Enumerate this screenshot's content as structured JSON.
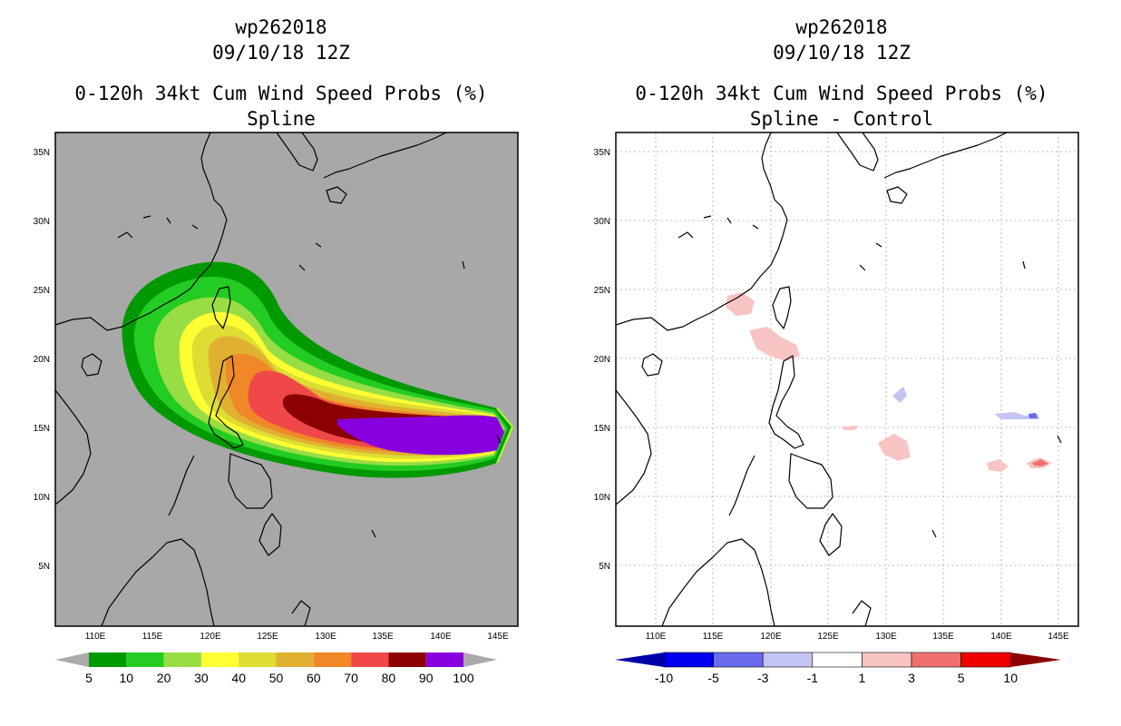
{
  "left_panel": {
    "title_line1": "wp262018",
    "title_line2": "09/10/18 12Z",
    "title_line3": "0-120h 34kt Cum Wind Speed Probs (%)",
    "title_line4": "Spline",
    "background_color": "#a8a8a8",
    "colorbar": {
      "colors": [
        "#009900",
        "#22cc22",
        "#99dd44",
        "#ffff33",
        "#dddd33",
        "#e0b030",
        "#f08828",
        "#f04848",
        "#8b0000",
        "#8800dd"
      ],
      "labels": [
        "5",
        "10",
        "20",
        "30",
        "40",
        "50",
        "60",
        "70",
        "80",
        "90",
        "100"
      ]
    }
  },
  "right_panel": {
    "title_line1": "wp262018",
    "title_line2": "09/10/18 12Z",
    "title_line3": "0-120h 34kt Cum Wind Speed Probs (%)",
    "title_line4": "Spline - Control",
    "background_color": "#ffffff",
    "colorbar": {
      "colors": [
        "#0000aa",
        "#0000ee",
        "#6a6aee",
        "#c4c4f4",
        "#ffffff",
        "#f8c4c4",
        "#f07070",
        "#ee0000",
        "#8b0000"
      ],
      "labels": [
        "-10",
        "-5",
        "-3",
        "-1",
        "1",
        "3",
        "5",
        "10"
      ]
    }
  },
  "axes": {
    "lon_labels": [
      "110E",
      "115E",
      "120E",
      "125E",
      "130E",
      "135E",
      "140E",
      "145E"
    ],
    "lat_labels": [
      "5N",
      "10N",
      "15N",
      "20N",
      "25N",
      "30N",
      "35N"
    ]
  }
}
